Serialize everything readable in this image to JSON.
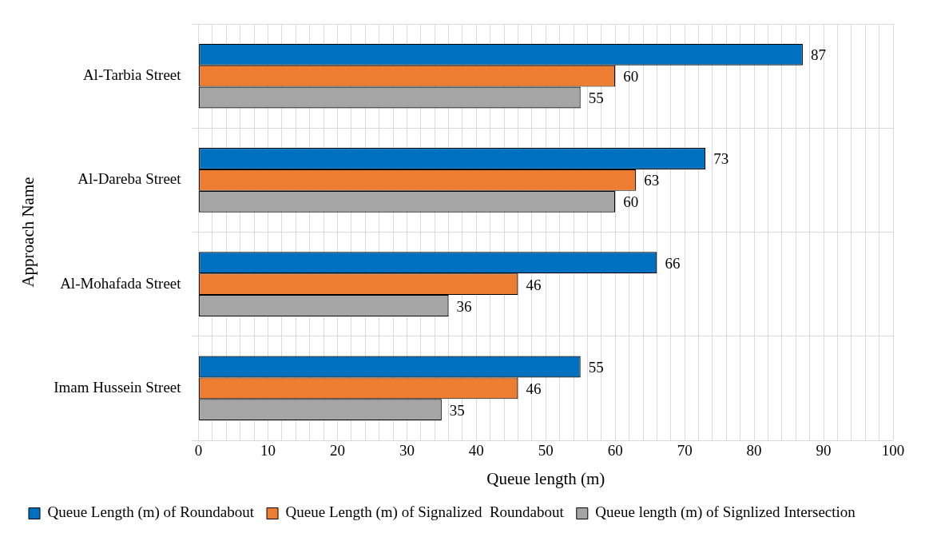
{
  "chart_data": {
    "type": "bar",
    "orientation": "horizontal",
    "xlabel": "Queue length (m)",
    "ylabel": "Approach Name",
    "categories": [
      "Al-Tarbia Street",
      "Al-Dareba Street",
      "Al-Mohafada Street",
      "Imam Hussein Street"
    ],
    "series": [
      {
        "name": "Queue Length (m) of Roundabout",
        "color": "#0070c0",
        "values": [
          87,
          73,
          66,
          55
        ]
      },
      {
        "name": "Queue Length (m) of Signalized  Roundabout",
        "color": "#ed7d31",
        "values": [
          60,
          63,
          46,
          46
        ]
      },
      {
        "name": "Queue length (m) of Signlized Intersection",
        "color": "#a5a5a5",
        "values": [
          55,
          60,
          36,
          35
        ]
      }
    ],
    "xlim": [
      0,
      100
    ],
    "xticks": [
      0,
      {
        "value": 2,
        "label": null
      },
      {
        "value": 4,
        "label": null
      },
      {
        "value": 6,
        "label": null
      },
      {
        "value": 8,
        "label": null
      },
      10,
      {
        "value": 12,
        "label": null
      },
      {
        "value": 14,
        "label": null
      },
      {
        "value": 16,
        "label": null
      },
      {
        "value": 18,
        "label": null
      },
      20,
      {
        "value": 22,
        "label": null
      },
      {
        "value": 24,
        "label": null
      },
      {
        "value": 26,
        "label": null
      },
      {
        "value": 28,
        "label": null
      },
      30,
      {
        "value": 32,
        "label": null
      },
      {
        "value": 34,
        "label": null
      },
      {
        "value": 36,
        "label": null
      },
      {
        "value": 38,
        "label": null
      },
      40,
      {
        "value": 42,
        "label": null
      },
      {
        "value": 44,
        "label": null
      },
      {
        "value": 46,
        "label": null
      },
      {
        "value": 48,
        "label": null
      },
      50,
      {
        "value": 52,
        "label": null
      },
      {
        "value": 54,
        "label": null
      },
      {
        "value": 56,
        "label": null
      },
      {
        "value": 58,
        "label": null
      },
      60,
      {
        "value": 62,
        "label": null
      },
      {
        "value": 64,
        "label": null
      },
      {
        "value": 66,
        "label": null
      },
      {
        "value": 68,
        "label": null
      },
      70,
      {
        "value": 72,
        "label": null
      },
      {
        "value": 74,
        "label": null
      },
      {
        "value": 76,
        "label": null
      },
      {
        "value": 78,
        "label": null
      },
      80,
      {
        "value": 82,
        "label": null
      },
      {
        "value": 84,
        "label": null
      },
      {
        "value": 86,
        "label": null
      },
      {
        "value": 88,
        "label": null
      },
      90,
      {
        "value": 92,
        "label": null
      },
      {
        "value": 94,
        "label": null
      },
      {
        "value": 96,
        "label": null
      },
      {
        "value": 98,
        "label": null
      },
      100
    ],
    "grid": true,
    "legend": "bottom",
    "data_labels": true
  }
}
